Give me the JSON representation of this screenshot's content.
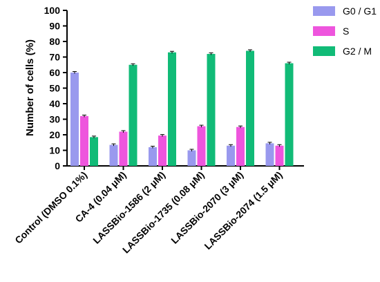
{
  "chart_data": {
    "type": "bar",
    "ylabel": "Number of cells (%)",
    "ylim": [
      0,
      100
    ],
    "yticks": [
      0,
      10,
      20,
      30,
      40,
      50,
      60,
      70,
      80,
      90,
      100
    ],
    "grid": false,
    "legend_position": "right",
    "categories": [
      "Control (DMSO 0.1%)",
      "CA-4 (0.04 μM)",
      "LASSBio-1586 (2 μM)",
      "LASSBio-1735 (0.08 μM)",
      "LASSBio-2070 (3 μM)",
      "LASSBio-2074 (1.5 μM)"
    ],
    "series": [
      {
        "name": "G0 / G1",
        "color": "#9999ee",
        "values": [
          60,
          13.5,
          12,
          10,
          13,
          14.5
        ]
      },
      {
        "name": "S",
        "color": "#ee55dd",
        "values": [
          32,
          22,
          19.5,
          25.5,
          25,
          13
        ]
      },
      {
        "name": "G2 / M",
        "color": "#11bb77",
        "values": [
          18.5,
          65,
          73,
          72,
          74,
          66
        ]
      }
    ]
  }
}
